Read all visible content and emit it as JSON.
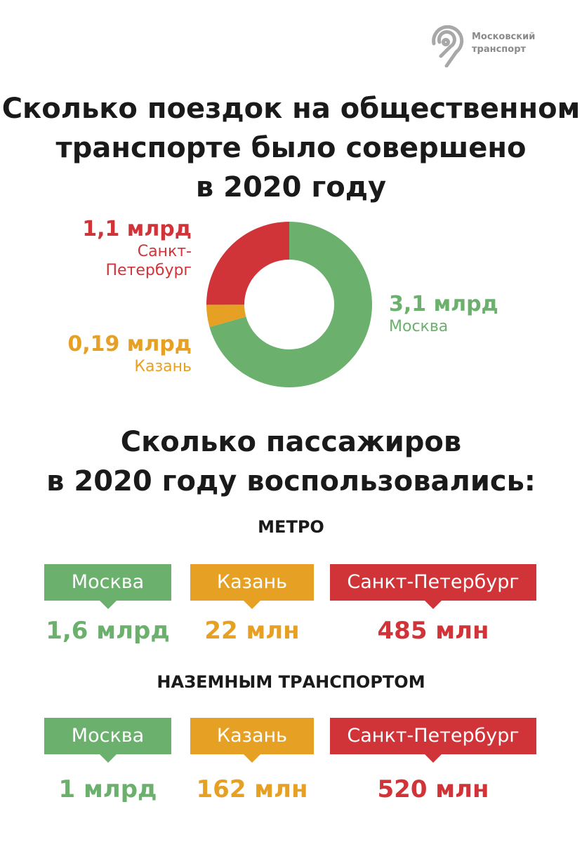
{
  "logo": {
    "line1": "Московский",
    "line2": "транспорт"
  },
  "title": {
    "line1": "Сколько поездок на общественном",
    "line2": "транспорте было совершено",
    "line3": "в 2020 году"
  },
  "colors": {
    "moscow": "#6bb06c",
    "kazan": "#e6a024",
    "spb": "#d13438"
  },
  "chart_data": {
    "type": "pie",
    "title": "Сколько поездок на общественном транспорте было совершено в 2020 году",
    "unit": "млрд",
    "slices": [
      {
        "label_value": "3,1 млрд",
        "city": "Москва",
        "value": 3.1,
        "color": "#6bb06c"
      },
      {
        "label_value": "0,19 млрд",
        "city": "Казань",
        "value": 0.19,
        "color": "#e6a024"
      },
      {
        "label_value": "1,1 млрд",
        "city_line1": "Санкт-",
        "city_line2": "Петербург",
        "value": 1.1,
        "color": "#d13438"
      }
    ]
  },
  "passengers": {
    "title_line1": "Сколько пассажиров",
    "title_line2": "в 2020 году воспользовались:",
    "metro": {
      "heading": "МЕТРО",
      "cities": [
        "Москва",
        "Казань",
        "Санкт-Петербург"
      ],
      "values": [
        "1,6 млрд",
        "22 млн",
        "485 млн"
      ]
    },
    "ground": {
      "heading": "НАЗЕМНЫМ ТРАНСПОРТОМ",
      "cities": [
        "Москва",
        "Казань",
        "Санкт-Петербург"
      ],
      "values": [
        "1 млрд",
        "162 млн",
        "520 млн"
      ]
    }
  }
}
